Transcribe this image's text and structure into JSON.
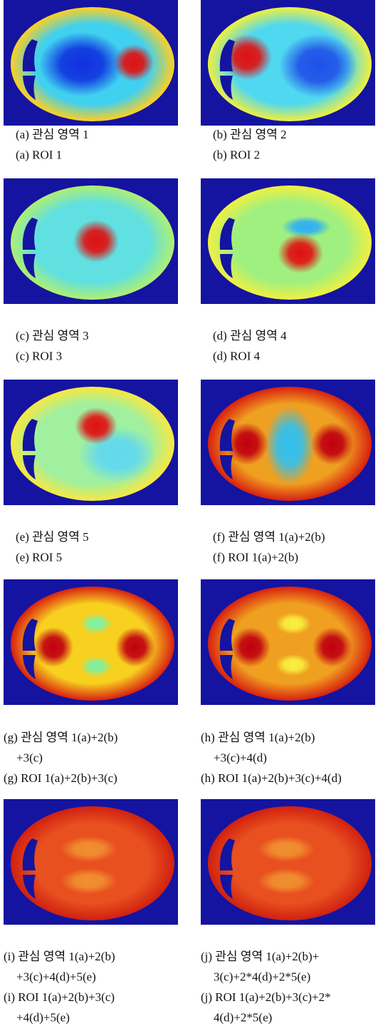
{
  "panels": [
    {
      "korean": [
        "(a) 관심 영역 1"
      ],
      "english": [
        "(a) ROI 1"
      ]
    },
    {
      "korean": [
        "(b) 관심 영역 2"
      ],
      "english": [
        "(b) ROI 2"
      ]
    },
    {
      "korean": [
        "(c) 관심 영역 3"
      ],
      "english": [
        "(c) ROI 3"
      ]
    },
    {
      "korean": [
        "(d) 관심 영역 4"
      ],
      "english": [
        "(d) ROI 4"
      ]
    },
    {
      "korean": [
        "(e) 관심 영역 5"
      ],
      "english": [
        "(e) ROI 5"
      ]
    },
    {
      "korean": [
        "(f) 관심 영역 1(a)+2(b)"
      ],
      "english": [
        "(f) ROI 1(a)+2(b)"
      ]
    },
    {
      "korean": [
        "(g) 관심 영역 1(a)+2(b)",
        "+3(c)"
      ],
      "english": [
        "(g) ROI 1(a)+2(b)+3(c)"
      ]
    },
    {
      "korean": [
        "(h) 관심 영역 1(a)+2(b)",
        "+3(c)+4(d)"
      ],
      "english": [
        "(h) ROI 1(a)+2(b)+3(c)+4(d)"
      ]
    },
    {
      "korean": [
        "(i) 관심 영역 1(a)+2(b)",
        "+3(c)+4(d)+5(e)"
      ],
      "english": [
        "(i) ROI 1(a)+2(b)+3(c)",
        "+4(d)+5(e)"
      ]
    },
    {
      "korean": [
        "(j) 관심 영역 1(a)+2(b)+",
        "3(c)+2*4(d)+2*5(e)"
      ],
      "english": [
        "(j) ROI 1(a)+2(b)+3(c)+2*",
        "4(d)+2*5(e)"
      ]
    }
  ]
}
